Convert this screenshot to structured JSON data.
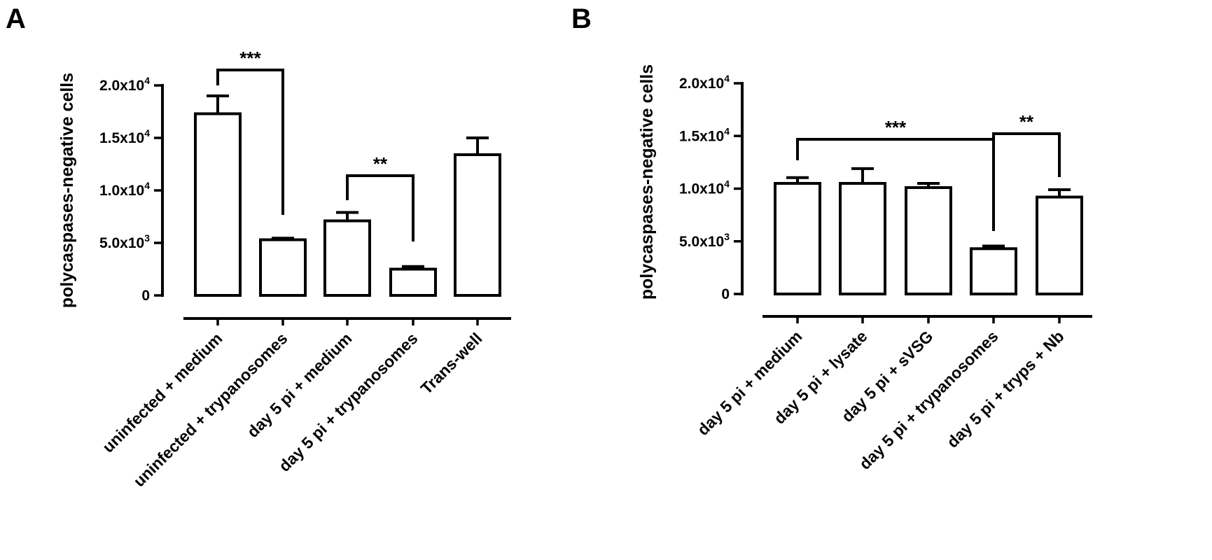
{
  "chart_data": [
    {
      "panel": "A",
      "type": "bar",
      "ylabel": "polycaspases-negative cells",
      "ylim": [
        0,
        20000
      ],
      "yticks": [
        {
          "value": 0,
          "base": "0",
          "exp": ""
        },
        {
          "value": 5000,
          "base": "5.0x10",
          "exp": "3"
        },
        {
          "value": 10000,
          "base": "1.0x10",
          "exp": "4"
        },
        {
          "value": 15000,
          "base": "1.5x10",
          "exp": "4"
        },
        {
          "value": 20000,
          "base": "2.0x10",
          "exp": "4"
        }
      ],
      "categories": [
        "uninfected + medium",
        "uninfected + trypanosomes",
        "day 5 pi + medium",
        "day 5 pi + trypanosomes",
        "Trans-well"
      ],
      "values": [
        17300,
        5300,
        7100,
        2500,
        13400
      ],
      "errors": [
        1700,
        150,
        800,
        250,
        1600
      ],
      "significance": [
        {
          "from": 0,
          "to": 1,
          "label": "***"
        },
        {
          "from": 2,
          "to": 3,
          "label": "**"
        }
      ],
      "grid": false,
      "legend": "none"
    },
    {
      "panel": "B",
      "type": "bar",
      "ylabel": "polycaspases-negative cells",
      "ylim": [
        0,
        20000
      ],
      "yticks": [
        {
          "value": 0,
          "base": "0",
          "exp": ""
        },
        {
          "value": 5000,
          "base": "5.0x10",
          "exp": "3"
        },
        {
          "value": 10000,
          "base": "1.0x10",
          "exp": "4"
        },
        {
          "value": 15000,
          "base": "1.5x10",
          "exp": "4"
        },
        {
          "value": 20000,
          "base": "2.0x10",
          "exp": "4"
        }
      ],
      "categories": [
        "day 5 pi + medium",
        "day 5 pi + lysate",
        "day 5 pi + sVSG",
        "day 5 pi + trypanosomes",
        "day 5 pi + tryps + Nb"
      ],
      "values": [
        10500,
        10500,
        10100,
        4300,
        9200
      ],
      "errors": [
        550,
        1400,
        400,
        250,
        700
      ],
      "significance": [
        {
          "from": 0,
          "to": 3,
          "label": "***"
        },
        {
          "from": 3,
          "to": 4,
          "label": "**"
        }
      ],
      "grid": false,
      "legend": "none"
    }
  ]
}
